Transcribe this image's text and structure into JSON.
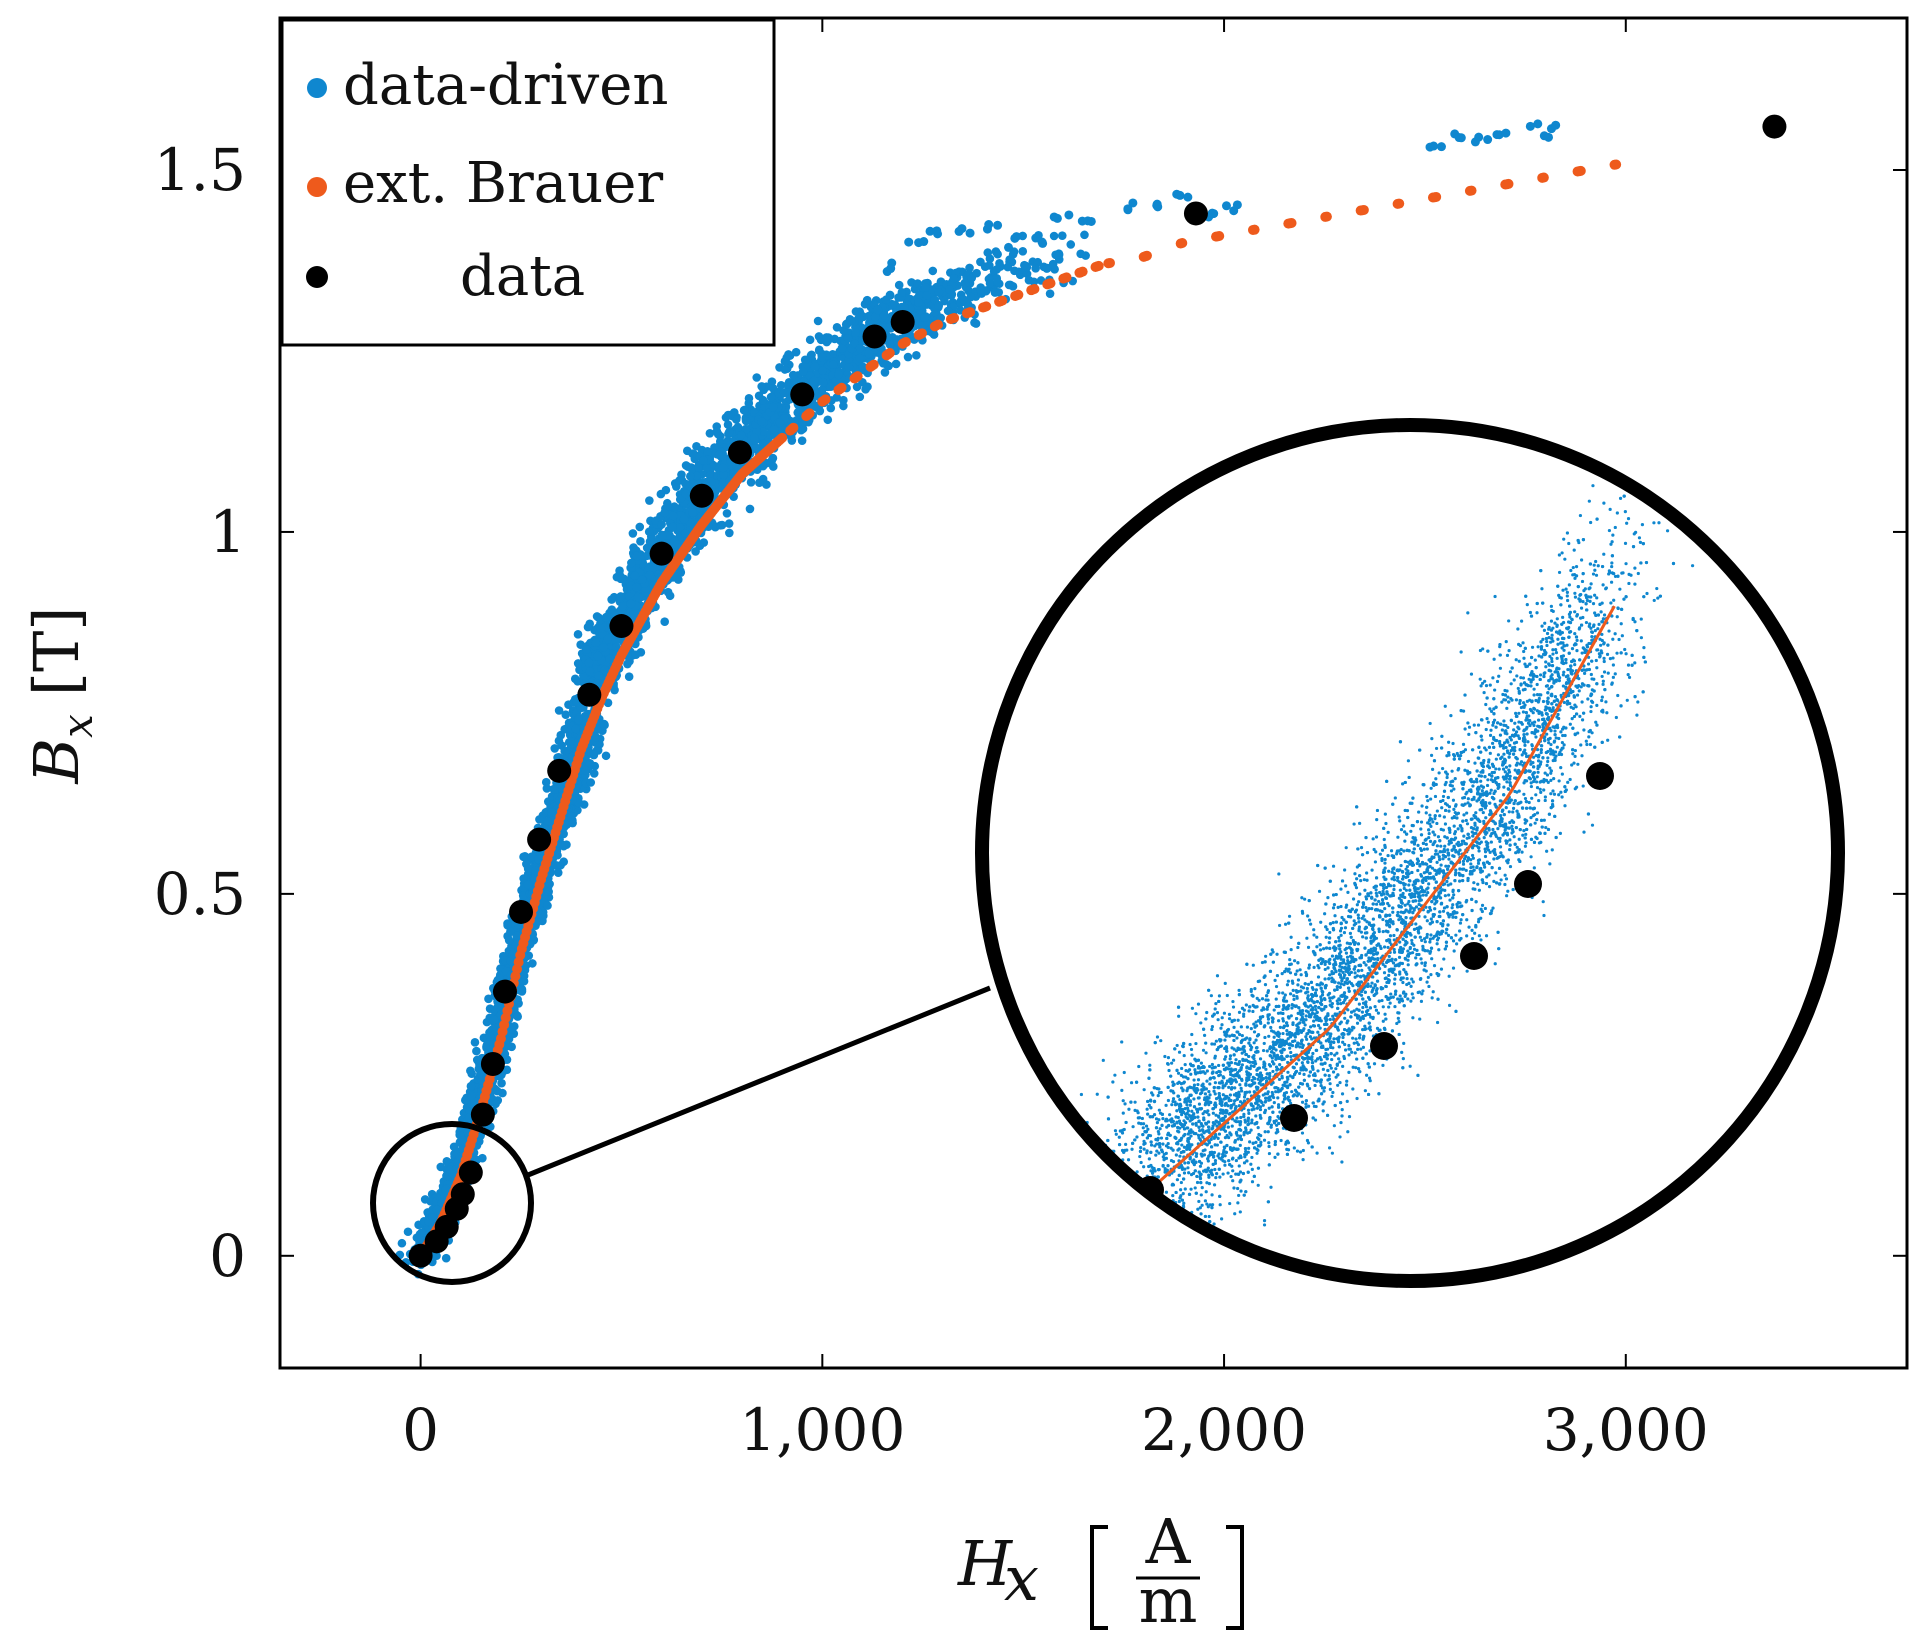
{
  "chart_data": {
    "type": "scatter",
    "title": "",
    "xlabel": {
      "symbol": "H",
      "subscript": "x",
      "unit_num": "A",
      "unit_den": "m"
    },
    "ylabel": {
      "symbol": "B",
      "subscript": "x",
      "unit": "[T]"
    },
    "xlim": [
      -350,
      3700
    ],
    "ylim": [
      -0.155,
      1.71
    ],
    "xticks": [
      0,
      1000,
      2000,
      3000
    ],
    "xtick_labels": [
      "0",
      "1,000",
      "2,000",
      "3,000"
    ],
    "yticks": [
      0,
      0.5,
      1,
      1.5
    ],
    "ytick_labels": [
      "0",
      "0.5",
      "1",
      "1.5"
    ],
    "grid": false,
    "legend": {
      "position": "top-left"
    },
    "colors": {
      "data_driven": "#0f87cf",
      "brauer": "#ee5a1c",
      "data": "#000000"
    },
    "series": [
      {
        "name": "data-driven",
        "color": "#0f87cf",
        "marker": "dot-cloud",
        "x": [
          1000,
          1060,
          1130,
          1180,
          1240,
          1290,
          1360,
          1420,
          1480,
          1530,
          1580,
          1660,
          1760,
          1830,
          1900,
          1960,
          2030,
          2520,
          2580,
          2640,
          2700,
          2770,
          2810
        ],
        "y": [
          1.27,
          1.29,
          1.31,
          1.36,
          1.4,
          1.42,
          1.41,
          1.42,
          1.4,
          1.4,
          1.44,
          1.43,
          1.45,
          1.45,
          1.46,
          1.44,
          1.45,
          1.53,
          1.55,
          1.54,
          1.55,
          1.56,
          1.56
        ]
      },
      {
        "name": "ext. Brauer",
        "color": "#ee5a1c",
        "marker": "dot-line",
        "x": [
          0,
          50,
          100,
          150,
          200,
          250,
          300,
          350,
          400,
          450,
          500,
          600,
          700,
          800,
          900,
          1000,
          1100,
          1200,
          1300,
          1400,
          1500,
          1600,
          1700,
          1800,
          1900,
          2000,
          2100,
          2200,
          2300,
          2400,
          2500,
          2600,
          2700,
          2800,
          2900,
          3000,
          3050
        ],
        "y": [
          0,
          0.045,
          0.11,
          0.2,
          0.3,
          0.42,
          0.52,
          0.61,
          0.7,
          0.77,
          0.83,
          0.93,
          1.01,
          1.08,
          1.13,
          1.18,
          1.22,
          1.26,
          1.29,
          1.31,
          1.33,
          1.35,
          1.37,
          1.38,
          1.4,
          1.41,
          1.42,
          1.43,
          1.44,
          1.45,
          1.46,
          1.47,
          1.48,
          1.49,
          1.5,
          1.51,
          1.51
        ]
      },
      {
        "name": "data",
        "color": "#000000",
        "marker": "circle",
        "x": [
          0,
          40,
          65,
          90,
          105,
          125,
          155,
          180,
          210,
          250,
          295,
          345,
          420,
          500,
          600,
          700,
          795,
          950,
          1130,
          1200,
          1930,
          3370
        ],
        "y": [
          0,
          0.02,
          0.04,
          0.065,
          0.085,
          0.115,
          0.195,
          0.265,
          0.365,
          0.475,
          0.575,
          0.67,
          0.775,
          0.87,
          0.97,
          1.05,
          1.11,
          1.19,
          1.27,
          1.29,
          1.44,
          1.56
        ]
      }
    ],
    "inset": {
      "description": "zoom of region near origin",
      "source_center": [
        85,
        0.08
      ],
      "data_points_x": [
        0,
        40,
        65,
        90,
        105,
        125
      ],
      "data_points_y": [
        0,
        0.02,
        0.04,
        0.065,
        0.085,
        0.115
      ]
    }
  },
  "legend": {
    "items": [
      {
        "label": "data-driven",
        "color": "#0f87cf"
      },
      {
        "label": "ext. Brauer",
        "color": "#ee5a1c"
      },
      {
        "label": "data",
        "color": "#000000"
      }
    ]
  }
}
